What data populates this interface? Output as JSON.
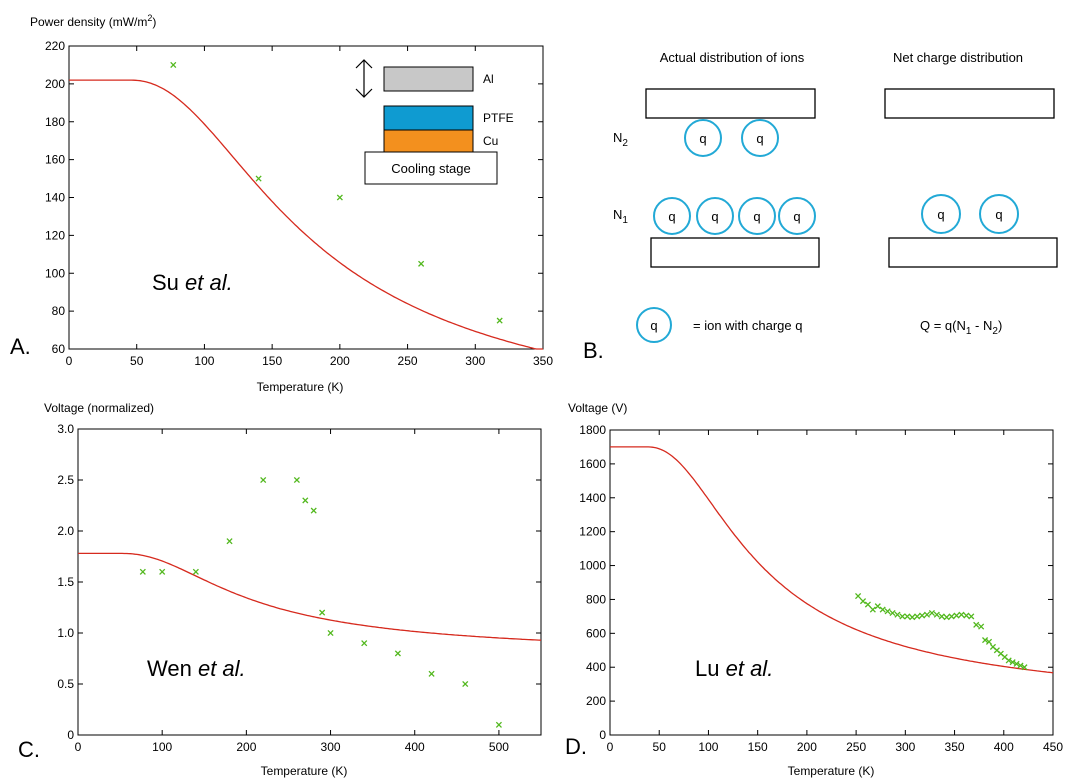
{
  "chart_data": [
    {
      "id": "A",
      "type": "scatter",
      "panel_label": "A.",
      "ylabel": "Power density (mW/m",
      "ylabel_sup": "2",
      "ylabel_close": ")",
      "xlabel": "Temperature (K)",
      "xlim": [
        0,
        350
      ],
      "ylim": [
        60,
        220
      ],
      "xticks": [
        0,
        50,
        100,
        150,
        200,
        250,
        300,
        350
      ],
      "yticks": [
        60,
        80,
        100,
        120,
        140,
        160,
        180,
        200,
        220
      ],
      "annotation": {
        "name": "Su",
        "suffix": "et al."
      },
      "points": [
        [
          77,
          210
        ],
        [
          140,
          150
        ],
        [
          200,
          140
        ],
        [
          260,
          105
        ],
        [
          318,
          75
        ]
      ],
      "fit": {
        "a": 202,
        "b": 12,
        "t0": 100
      },
      "inset": {
        "al": "Al",
        "ptfe": "PTFE",
        "cu": "Cu",
        "stage": "Cooling stage"
      },
      "colors": {
        "fit": "#d62a1e",
        "points": "#52b81e",
        "al": "#c8c8c8",
        "ptfe": "#0f9bd1",
        "cu": "#f3901e"
      }
    },
    {
      "id": "C",
      "type": "scatter",
      "panel_label": "C.",
      "ylabel": "Voltage (normalized)",
      "xlabel": "Temperature (K)",
      "xlim": [
        0,
        550
      ],
      "ylim": [
        0,
        3.0
      ],
      "xticks": [
        0,
        100,
        200,
        300,
        400,
        500
      ],
      "yticks": [
        "0",
        "0.5",
        "1.0",
        "1.5",
        "2.0",
        "2.5",
        "3.0"
      ],
      "annotation": {
        "name": "Wen",
        "suffix": "et al."
      },
      "points": [
        [
          77,
          1.6
        ],
        [
          100,
          1.6
        ],
        [
          140,
          1.6
        ],
        [
          180,
          1.9
        ],
        [
          220,
          2.5
        ],
        [
          260,
          2.5
        ],
        [
          270,
          2.3
        ],
        [
          280,
          2.2
        ],
        [
          290,
          1.2
        ],
        [
          300,
          1.0
        ],
        [
          340,
          0.9
        ],
        [
          380,
          0.8
        ],
        [
          420,
          0.6
        ],
        [
          460,
          0.5
        ],
        [
          500,
          0.1
        ]
      ],
      "fit": {
        "a": 1.78,
        "b": 0.76,
        "t0": 115
      },
      "colors": {
        "fit": "#d62a1e",
        "points": "#52b81e"
      }
    },
    {
      "id": "D",
      "type": "scatter",
      "panel_label": "D.",
      "ylabel": "Voltage (V)",
      "xlabel": "Temperature (K)",
      "xlim": [
        0,
        450
      ],
      "ylim": [
        0,
        1800
      ],
      "xticks": [
        0,
        50,
        100,
        150,
        200,
        250,
        300,
        350,
        400,
        450
      ],
      "yticks": [
        0,
        200,
        400,
        600,
        800,
        1000,
        1200,
        1400,
        1600,
        1800
      ],
      "annotation": {
        "name": "Lu",
        "suffix": "et al."
      },
      "points": [
        [
          252,
          820
        ],
        [
          257,
          790
        ],
        [
          262,
          770
        ],
        [
          267,
          740
        ],
        [
          272,
          760
        ],
        [
          277,
          740
        ],
        [
          282,
          730
        ],
        [
          287,
          720
        ],
        [
          292,
          710
        ],
        [
          297,
          700
        ],
        [
          302,
          700
        ],
        [
          307,
          695
        ],
        [
          312,
          700
        ],
        [
          317,
          705
        ],
        [
          322,
          710
        ],
        [
          327,
          720
        ],
        [
          332,
          710
        ],
        [
          337,
          700
        ],
        [
          342,
          695
        ],
        [
          347,
          700
        ],
        [
          352,
          705
        ],
        [
          357,
          710
        ],
        [
          362,
          705
        ],
        [
          367,
          700
        ],
        [
          372,
          650
        ],
        [
          377,
          640
        ],
        [
          381,
          560
        ],
        [
          385,
          550
        ],
        [
          389,
          520
        ],
        [
          393,
          500
        ],
        [
          397,
          480
        ],
        [
          401,
          460
        ],
        [
          405,
          440
        ],
        [
          409,
          430
        ],
        [
          413,
          420
        ],
        [
          417,
          410
        ],
        [
          421,
          400
        ]
      ],
      "fit": {
        "a": 1700,
        "b": 140,
        "t0": 85
      },
      "colors": {
        "fit": "#d62a1e",
        "points": "#52b81e"
      }
    }
  ],
  "diagram_b": {
    "panel_label": "B.",
    "title_left": "Actual distribution of ions",
    "title_right": "Net charge distribution",
    "n2_label": "N",
    "n2_sub": "2",
    "n1_label": "N",
    "n1_sub": "1",
    "ion_symbol": "q",
    "legend_text": "= ion with charge q",
    "formula_text": "Q = q(N",
    "formula_sub1": "1",
    "formula_mid": " - N",
    "formula_sub2": "2",
    "formula_end": ")",
    "colors": {
      "ion": "#22a9d6"
    }
  }
}
